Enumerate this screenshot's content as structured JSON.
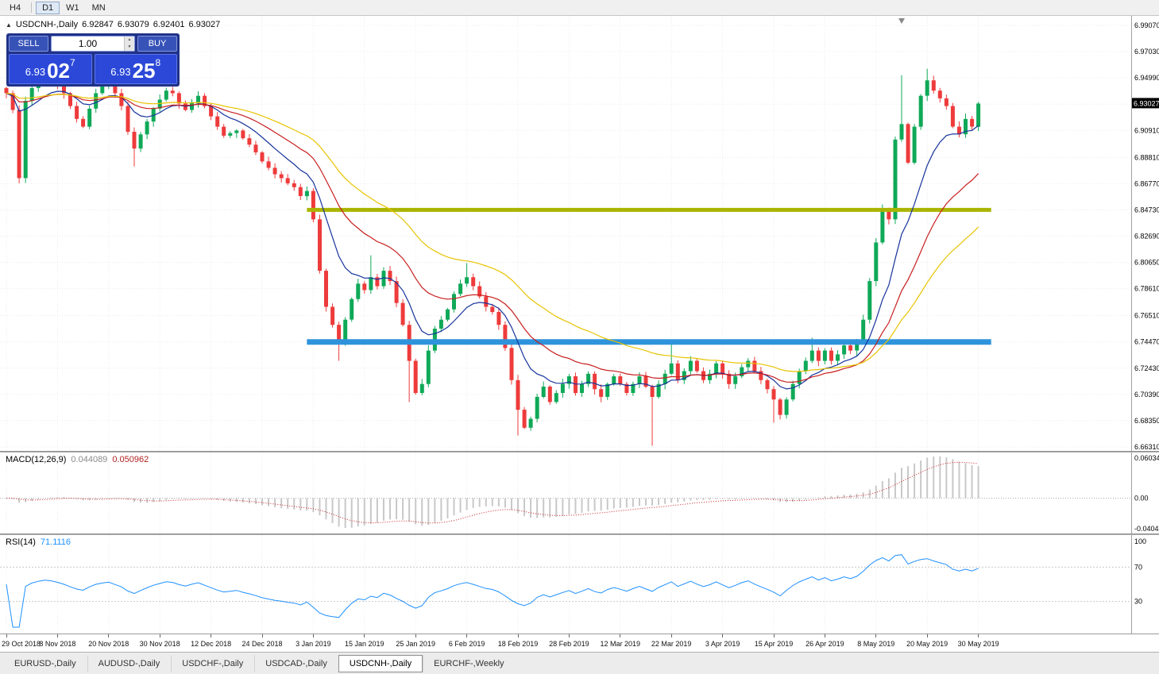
{
  "toolbar": {
    "timeframes": [
      {
        "label": "H4",
        "active": false
      },
      {
        "label": "D1",
        "active": true
      },
      {
        "label": "W1",
        "active": false
      },
      {
        "label": "MN",
        "active": false
      }
    ]
  },
  "header": {
    "symbol_line": "USDCNH-,Daily",
    "open": "6.92847",
    "high": "6.93079",
    "low": "6.92401",
    "close": "6.93027"
  },
  "icons": {
    "toggle_up": "▲",
    "spinner_up": "▲",
    "spinner_down": "▼"
  },
  "trade_widget": {
    "sell_label": "SELL",
    "buy_label": "BUY",
    "volume": "1.00",
    "sell_price_small": "6.93",
    "sell_price_big": "02",
    "sell_price_sup": "7",
    "buy_price_small": "6.93",
    "buy_price_big": "25",
    "buy_price_sup": "8",
    "colors": {
      "panel": "#203288",
      "tile": "#2b48d8",
      "button": "#3753b8"
    }
  },
  "chart_data": {
    "type": "candlestick",
    "symbol": "USDCNH-",
    "period": "Daily",
    "current_price": "6.93027",
    "shift_marker_bar": 140,
    "price_range": {
      "top": 6.9981,
      "bottom": 6.66
    },
    "price_scale_labels": [
      "6.99070",
      "6.97030",
      "6.94990",
      "6.92950",
      "6.90910",
      "6.88810",
      "6.86770",
      "6.84730",
      "6.82690",
      "6.80650",
      "6.78610",
      "6.76510",
      "6.74470",
      "6.72430",
      "6.70390",
      "6.68350",
      "6.66310"
    ],
    "x_labels": [
      "29 Oct 2018",
      "8 Nov 2018",
      "20 Nov 2018",
      "30 Nov 2018",
      "12 Dec 2018",
      "24 Dec 2018",
      "3 Jan 2019",
      "15 Jan 2019",
      "25 Jan 2019",
      "6 Feb 2019",
      "18 Feb 2019",
      "28 Feb 2019",
      "12 Mar 2019",
      "22 Mar 2019",
      "3 Apr 2019",
      "15 Apr 2019",
      "26 Apr 2019",
      "8 May 2019",
      "20 May 2019",
      "30 May 2019"
    ],
    "closes": [
      6.938,
      6.925,
      6.872,
      6.932,
      6.942,
      6.948,
      6.952,
      6.95,
      6.945,
      6.938,
      6.928,
      6.918,
      6.912,
      6.926,
      6.938,
      6.944,
      6.948,
      6.938,
      6.928,
      6.908,
      6.895,
      6.906,
      6.916,
      6.926,
      6.933,
      6.94,
      6.938,
      6.93,
      6.925,
      6.931,
      6.936,
      6.928,
      6.92,
      6.912,
      6.905,
      6.907,
      6.909,
      6.903,
      6.898,
      6.892,
      6.885,
      6.88,
      6.875,
      6.872,
      6.868,
      6.865,
      6.858,
      6.862,
      6.84,
      6.8,
      6.772,
      6.758,
      6.745,
      6.762,
      6.778,
      6.79,
      6.785,
      6.795,
      6.788,
      6.8,
      6.792,
      6.775,
      6.758,
      6.73,
      6.705,
      6.712,
      6.738,
      6.755,
      6.762,
      6.77,
      6.782,
      6.79,
      6.795,
      6.788,
      6.78,
      6.772,
      6.768,
      6.758,
      6.74,
      6.715,
      6.692,
      6.678,
      6.685,
      6.702,
      6.71,
      6.698,
      6.705,
      6.712,
      6.718,
      6.705,
      6.712,
      6.72,
      6.708,
      6.702,
      6.712,
      6.718,
      6.712,
      6.705,
      6.712,
      6.718,
      6.71,
      6.702,
      6.712,
      6.72,
      6.728,
      6.715,
      6.722,
      6.73,
      6.722,
      6.715,
      6.72,
      6.728,
      6.72,
      6.712,
      6.718,
      6.725,
      6.73,
      6.722,
      6.715,
      6.708,
      6.7,
      6.688,
      6.7,
      6.712,
      6.722,
      6.73,
      6.738,
      6.73,
      6.738,
      6.73,
      6.735,
      6.742,
      6.738,
      6.745,
      6.762,
      6.792,
      6.822,
      6.848,
      6.84,
      6.902,
      6.914,
      6.884,
      6.912,
      6.936,
      6.948,
      6.94,
      6.934,
      6.928,
      6.912,
      6.906,
      6.918,
      6.912,
      6.93
    ],
    "high_overrides": {
      "6": 6.958,
      "57": 6.812,
      "72": 6.806,
      "104": 6.746,
      "126": 6.748,
      "140": 6.952,
      "144": 6.957
    },
    "low_overrides": {
      "2": 6.868,
      "20": 6.881,
      "52": 6.73,
      "63": 6.698,
      "80": 6.672,
      "101": 6.664,
      "120": 6.682
    },
    "trend_lines": [
      {
        "price": 6.8473,
        "color": "#aab400",
        "width": 5,
        "bar_start": 47,
        "bar_end": 154
      },
      {
        "price": 6.7447,
        "color": "#2e93db",
        "width": 7,
        "bar_start": 47,
        "bar_end": 154
      }
    ],
    "ma_lines": [
      {
        "period": 10,
        "color": "#16339c"
      },
      {
        "period": 22,
        "color": "#c81e1e"
      },
      {
        "period": 40,
        "color": "#e8c300"
      }
    ],
    "macd": {
      "label": "MACD(12,26,9)",
      "value_main": "0.044089",
      "value_signal": "0.050962",
      "fast": 12,
      "slow": 26,
      "signal": 9,
      "scale_top_label": "0.06034",
      "scale_zero_label": "0.00",
      "scale_bottom_label": "-0.04041"
    },
    "rsi": {
      "label": "RSI(14)",
      "value": "71.1116",
      "period": 14,
      "levels": [
        30,
        70
      ],
      "scale_labels": [
        "100",
        "70",
        "30"
      ]
    },
    "colors": {
      "up": "#0fa958",
      "down": "#ee3b3b",
      "grid": "#ececec",
      "histogram": "#c8c8c8",
      "signal": "#cc2222",
      "rsi": "#1e90ff"
    }
  },
  "tabs": [
    {
      "label": "EURUSD-,Daily",
      "active": false
    },
    {
      "label": "AUDUSD-,Daily",
      "active": false
    },
    {
      "label": "USDCHF-,Daily",
      "active": false
    },
    {
      "label": "USDCAD-,Daily",
      "active": false
    },
    {
      "label": "USDCNH-,Daily",
      "active": true
    },
    {
      "label": "EURCHF-,Weekly",
      "active": false
    }
  ]
}
